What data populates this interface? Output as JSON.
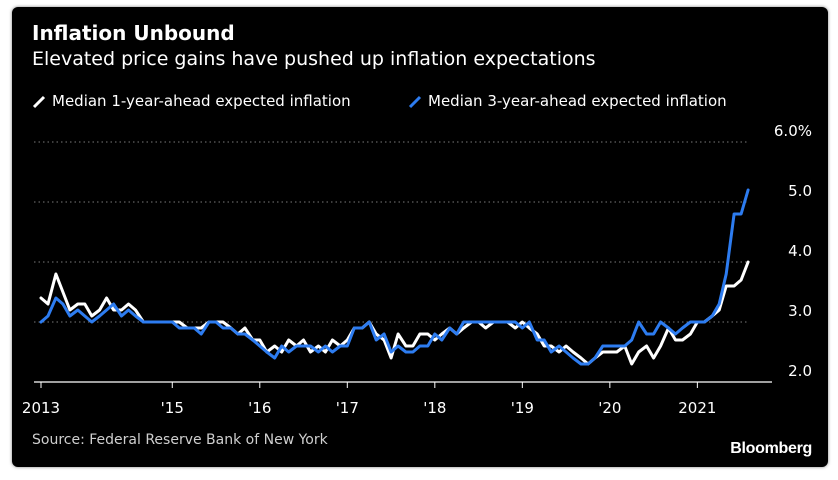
{
  "chart_data": {
    "type": "line",
    "title": "Inflation Unbound",
    "subtitle": "Elevated price gains have pushed up inflation expectations",
    "source": "Source: Federal Reserve Bank of New York",
    "brand": "Bloomberg",
    "ylim": [
      2.0,
      6.0
    ],
    "yticks": [
      {
        "value": 2.0,
        "label": "2.0"
      },
      {
        "value": 3.0,
        "label": "3.0"
      },
      {
        "value": 4.0,
        "label": "4.0"
      },
      {
        "value": 5.0,
        "label": "5.0"
      },
      {
        "value": 6.0,
        "label": "6.0%"
      }
    ],
    "xlim": [
      2013.42,
      2021.83
    ],
    "xticks": [
      {
        "value": 2013.5,
        "label": "2013"
      },
      {
        "value": 2015.0,
        "label": "'15"
      },
      {
        "value": 2016.0,
        "label": "'16"
      },
      {
        "value": 2017.0,
        "label": "'17"
      },
      {
        "value": 2018.0,
        "label": "'18"
      },
      {
        "value": 2019.0,
        "label": "'19"
      },
      {
        "value": 2020.0,
        "label": "'20"
      },
      {
        "value": 2021.0,
        "label": "2021"
      }
    ],
    "grid": true,
    "legend_position": "top-left",
    "series": [
      {
        "name": "Median 1-year-ahead expected inflation",
        "color": "#ffffff",
        "points": [
          [
            2013.5,
            3.4
          ],
          [
            2013.58,
            3.3
          ],
          [
            2013.67,
            3.8
          ],
          [
            2013.75,
            3.5
          ],
          [
            2013.83,
            3.2
          ],
          [
            2013.92,
            3.3
          ],
          [
            2014.0,
            3.3
          ],
          [
            2014.08,
            3.1
          ],
          [
            2014.17,
            3.2
          ],
          [
            2014.25,
            3.4
          ],
          [
            2014.33,
            3.2
          ],
          [
            2014.42,
            3.2
          ],
          [
            2014.5,
            3.3
          ],
          [
            2014.58,
            3.2
          ],
          [
            2014.67,
            3.0
          ],
          [
            2014.75,
            3.0
          ],
          [
            2014.83,
            3.0
          ],
          [
            2014.92,
            3.0
          ],
          [
            2015.0,
            3.0
          ],
          [
            2015.08,
            3.0
          ],
          [
            2015.17,
            2.9
          ],
          [
            2015.25,
            2.9
          ],
          [
            2015.33,
            2.9
          ],
          [
            2015.42,
            3.0
          ],
          [
            2015.5,
            3.0
          ],
          [
            2015.58,
            3.0
          ],
          [
            2015.67,
            2.9
          ],
          [
            2015.75,
            2.8
          ],
          [
            2015.83,
            2.9
          ],
          [
            2015.92,
            2.7
          ],
          [
            2016.0,
            2.7
          ],
          [
            2016.08,
            2.5
          ],
          [
            2016.17,
            2.6
          ],
          [
            2016.25,
            2.5
          ],
          [
            2016.33,
            2.7
          ],
          [
            2016.42,
            2.6
          ],
          [
            2016.5,
            2.7
          ],
          [
            2016.58,
            2.5
          ],
          [
            2016.67,
            2.6
          ],
          [
            2016.75,
            2.5
          ],
          [
            2016.83,
            2.7
          ],
          [
            2016.92,
            2.6
          ],
          [
            2017.0,
            2.7
          ],
          [
            2017.08,
            2.9
          ],
          [
            2017.17,
            2.9
          ],
          [
            2017.25,
            3.0
          ],
          [
            2017.33,
            2.8
          ],
          [
            2017.42,
            2.7
          ],
          [
            2017.5,
            2.4
          ],
          [
            2017.58,
            2.8
          ],
          [
            2017.67,
            2.6
          ],
          [
            2017.75,
            2.6
          ],
          [
            2017.83,
            2.8
          ],
          [
            2017.92,
            2.8
          ],
          [
            2018.0,
            2.7
          ],
          [
            2018.08,
            2.8
          ],
          [
            2018.17,
            2.9
          ],
          [
            2018.25,
            2.8
          ],
          [
            2018.33,
            2.9
          ],
          [
            2018.42,
            3.0
          ],
          [
            2018.5,
            3.0
          ],
          [
            2018.58,
            2.9
          ],
          [
            2018.67,
            3.0
          ],
          [
            2018.75,
            3.0
          ],
          [
            2018.83,
            3.0
          ],
          [
            2018.92,
            2.9
          ],
          [
            2019.0,
            3.0
          ],
          [
            2019.08,
            2.9
          ],
          [
            2019.17,
            2.8
          ],
          [
            2019.25,
            2.6
          ],
          [
            2019.33,
            2.6
          ],
          [
            2019.42,
            2.5
          ],
          [
            2019.5,
            2.6
          ],
          [
            2019.58,
            2.5
          ],
          [
            2019.67,
            2.4
          ],
          [
            2019.75,
            2.3
          ],
          [
            2019.83,
            2.4
          ],
          [
            2019.92,
            2.5
          ],
          [
            2020.0,
            2.5
          ],
          [
            2020.08,
            2.5
          ],
          [
            2020.17,
            2.6
          ],
          [
            2020.25,
            2.3
          ],
          [
            2020.33,
            2.5
          ],
          [
            2020.42,
            2.6
          ],
          [
            2020.5,
            2.4
          ],
          [
            2020.58,
            2.6
          ],
          [
            2020.67,
            2.9
          ],
          [
            2020.75,
            2.7
          ],
          [
            2020.83,
            2.7
          ],
          [
            2020.92,
            2.8
          ],
          [
            2021.0,
            3.0
          ],
          [
            2021.08,
            3.0
          ],
          [
            2021.17,
            3.1
          ],
          [
            2021.25,
            3.2
          ],
          [
            2021.33,
            3.6
          ],
          [
            2021.42,
            3.6
          ],
          [
            2021.5,
            3.7
          ],
          [
            2021.58,
            4.0
          ]
        ]
      },
      {
        "name": "Median 3-year-ahead expected inflation",
        "color": "#2d7cf0",
        "points": [
          [
            2013.5,
            3.0
          ],
          [
            2013.58,
            3.1
          ],
          [
            2013.67,
            3.4
          ],
          [
            2013.75,
            3.3
          ],
          [
            2013.83,
            3.1
          ],
          [
            2013.92,
            3.2
          ],
          [
            2014.0,
            3.1
          ],
          [
            2014.08,
            3.0
          ],
          [
            2014.17,
            3.1
          ],
          [
            2014.25,
            3.2
          ],
          [
            2014.33,
            3.3
          ],
          [
            2014.42,
            3.1
          ],
          [
            2014.5,
            3.2
          ],
          [
            2014.58,
            3.1
          ],
          [
            2014.67,
            3.0
          ],
          [
            2014.75,
            3.0
          ],
          [
            2014.83,
            3.0
          ],
          [
            2014.92,
            3.0
          ],
          [
            2015.0,
            3.0
          ],
          [
            2015.08,
            2.9
          ],
          [
            2015.17,
            2.9
          ],
          [
            2015.25,
            2.9
          ],
          [
            2015.33,
            2.8
          ],
          [
            2015.42,
            3.0
          ],
          [
            2015.5,
            3.0
          ],
          [
            2015.58,
            2.9
          ],
          [
            2015.67,
            2.9
          ],
          [
            2015.75,
            2.8
          ],
          [
            2015.83,
            2.8
          ],
          [
            2015.92,
            2.7
          ],
          [
            2016.0,
            2.6
          ],
          [
            2016.08,
            2.5
          ],
          [
            2016.17,
            2.4
          ],
          [
            2016.25,
            2.6
          ],
          [
            2016.33,
            2.5
          ],
          [
            2016.42,
            2.6
          ],
          [
            2016.5,
            2.6
          ],
          [
            2016.58,
            2.6
          ],
          [
            2016.67,
            2.5
          ],
          [
            2016.75,
            2.6
          ],
          [
            2016.83,
            2.5
          ],
          [
            2016.92,
            2.6
          ],
          [
            2017.0,
            2.6
          ],
          [
            2017.08,
            2.9
          ],
          [
            2017.17,
            2.9
          ],
          [
            2017.25,
            3.0
          ],
          [
            2017.33,
            2.7
          ],
          [
            2017.42,
            2.8
          ],
          [
            2017.5,
            2.5
          ],
          [
            2017.58,
            2.6
          ],
          [
            2017.67,
            2.5
          ],
          [
            2017.75,
            2.5
          ],
          [
            2017.83,
            2.6
          ],
          [
            2017.92,
            2.6
          ],
          [
            2018.0,
            2.8
          ],
          [
            2018.08,
            2.7
          ],
          [
            2018.17,
            2.9
          ],
          [
            2018.25,
            2.8
          ],
          [
            2018.33,
            3.0
          ],
          [
            2018.42,
            3.0
          ],
          [
            2018.5,
            3.0
          ],
          [
            2018.58,
            3.0
          ],
          [
            2018.67,
            3.0
          ],
          [
            2018.75,
            3.0
          ],
          [
            2018.83,
            3.0
          ],
          [
            2018.92,
            3.0
          ],
          [
            2019.0,
            2.9
          ],
          [
            2019.08,
            3.0
          ],
          [
            2019.17,
            2.7
          ],
          [
            2019.25,
            2.7
          ],
          [
            2019.33,
            2.5
          ],
          [
            2019.42,
            2.6
          ],
          [
            2019.5,
            2.5
          ],
          [
            2019.58,
            2.4
          ],
          [
            2019.67,
            2.3
          ],
          [
            2019.75,
            2.3
          ],
          [
            2019.83,
            2.4
          ],
          [
            2019.92,
            2.6
          ],
          [
            2020.0,
            2.6
          ],
          [
            2020.08,
            2.6
          ],
          [
            2020.17,
            2.6
          ],
          [
            2020.25,
            2.7
          ],
          [
            2020.33,
            3.0
          ],
          [
            2020.42,
            2.8
          ],
          [
            2020.5,
            2.8
          ],
          [
            2020.58,
            3.0
          ],
          [
            2020.67,
            2.9
          ],
          [
            2020.75,
            2.8
          ],
          [
            2020.83,
            2.9
          ],
          [
            2020.92,
            3.0
          ],
          [
            2021.0,
            3.0
          ],
          [
            2021.08,
            3.0
          ],
          [
            2021.17,
            3.1
          ],
          [
            2021.25,
            3.3
          ],
          [
            2021.33,
            3.8
          ],
          [
            2021.42,
            4.8
          ],
          [
            2021.5,
            4.8
          ],
          [
            2021.58,
            5.2
          ]
        ]
      }
    ]
  }
}
